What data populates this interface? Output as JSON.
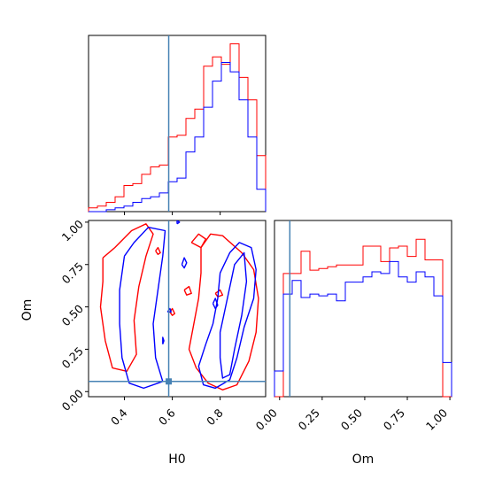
{
  "chart_data": {
    "type": "corner",
    "parameters": [
      "H0",
      "Om"
    ],
    "truth": {
      "H0": 0.585,
      "Om": 0.06
    },
    "truth_color": "#4682b4",
    "series": [
      {
        "color": "#ff0000"
      },
      {
        "color": "#0000ff"
      }
    ],
    "xlim_H0": [
      0.25,
      0.99
    ],
    "ylim_Om": [
      -0.03,
      1.01
    ],
    "xlim_Om": [
      -0.03,
      1.01
    ],
    "H0_ticks": [
      "0.4",
      "0.6",
      "0.8"
    ],
    "Om_ticks": [
      "0.00",
      "0.25",
      "0.50",
      "0.75",
      "1.00"
    ],
    "hist_H0": {
      "edges": [
        0.25,
        0.287,
        0.324,
        0.361,
        0.398,
        0.435,
        0.472,
        0.509,
        0.546,
        0.583,
        0.62,
        0.657,
        0.694,
        0.731,
        0.768,
        0.805,
        0.842,
        0.879,
        0.916,
        0.953,
        0.99
      ],
      "red": [
        2,
        3,
        5,
        8,
        14,
        15,
        20,
        24,
        25,
        40,
        41,
        50,
        55,
        78,
        83,
        79,
        90,
        72,
        60,
        30
      ],
      "blue": [
        0,
        0,
        1,
        2,
        3,
        5,
        7,
        8,
        10,
        16,
        18,
        32,
        40,
        56,
        70,
        80,
        75,
        60,
        40,
        12
      ]
    },
    "hist_Om": {
      "edges": [
        -0.03,
        0.022,
        0.074,
        0.126,
        0.178,
        0.23,
        0.282,
        0.334,
        0.386,
        0.438,
        0.49,
        0.542,
        0.594,
        0.646,
        0.698,
        0.75,
        0.802,
        0.854,
        0.906,
        0.958,
        1.01
      ],
      "red": [
        0,
        72,
        72,
        85,
        74,
        75,
        76,
        77,
        77,
        77,
        88,
        88,
        79,
        87,
        88,
        82,
        92,
        80,
        80,
        0
      ],
      "blue": [
        15,
        60,
        68,
        58,
        60,
        59,
        60,
        56,
        67,
        67,
        70,
        73,
        72,
        79,
        70,
        67,
        73,
        70,
        59,
        20
      ]
    },
    "contours": {
      "red": [
        [
          [
            0.31,
            0.79
          ],
          [
            0.36,
            0.85
          ],
          [
            0.43,
            0.95
          ],
          [
            0.49,
            0.99
          ],
          [
            0.52,
            0.93
          ],
          [
            0.49,
            0.8
          ],
          [
            0.46,
            0.62
          ],
          [
            0.44,
            0.42
          ],
          [
            0.45,
            0.22
          ],
          [
            0.41,
            0.12
          ],
          [
            0.35,
            0.14
          ],
          [
            0.32,
            0.3
          ],
          [
            0.3,
            0.5
          ],
          [
            0.31,
            0.65
          ],
          [
            0.31,
            0.79
          ]
        ],
        [
          [
            0.72,
            0.85
          ],
          [
            0.76,
            0.93
          ],
          [
            0.81,
            0.92
          ],
          [
            0.89,
            0.82
          ],
          [
            0.94,
            0.72
          ],
          [
            0.96,
            0.55
          ],
          [
            0.95,
            0.35
          ],
          [
            0.92,
            0.18
          ],
          [
            0.87,
            0.04
          ],
          [
            0.81,
            0.01
          ],
          [
            0.75,
            0.05
          ],
          [
            0.7,
            0.14
          ],
          [
            0.67,
            0.25
          ],
          [
            0.69,
            0.4
          ],
          [
            0.71,
            0.55
          ],
          [
            0.72,
            0.7
          ],
          [
            0.72,
            0.85
          ]
        ],
        [
          [
            0.68,
            0.88
          ],
          [
            0.71,
            0.93
          ],
          [
            0.74,
            0.9
          ],
          [
            0.72,
            0.85
          ],
          [
            0.68,
            0.88
          ]
        ],
        [
          [
            0.78,
            0.58
          ],
          [
            0.8,
            0.6
          ],
          [
            0.81,
            0.57
          ],
          [
            0.79,
            0.56
          ],
          [
            0.78,
            0.58
          ]
        ],
        [
          [
            0.65,
            0.6
          ],
          [
            0.67,
            0.62
          ],
          [
            0.68,
            0.58
          ],
          [
            0.66,
            0.57
          ],
          [
            0.65,
            0.6
          ]
        ],
        [
          [
            0.53,
            0.83
          ],
          [
            0.54,
            0.85
          ],
          [
            0.55,
            0.82
          ],
          [
            0.54,
            0.81
          ],
          [
            0.53,
            0.83
          ]
        ],
        [
          [
            0.59,
            0.47
          ],
          [
            0.6,
            0.49
          ],
          [
            0.61,
            0.46
          ],
          [
            0.6,
            0.45
          ],
          [
            0.59,
            0.47
          ]
        ]
      ],
      "blue": [
        [
          [
            0.4,
            0.8
          ],
          [
            0.44,
            0.88
          ],
          [
            0.5,
            0.97
          ],
          [
            0.57,
            0.95
          ],
          [
            0.56,
            0.8
          ],
          [
            0.54,
            0.6
          ],
          [
            0.52,
            0.4
          ],
          [
            0.53,
            0.2
          ],
          [
            0.56,
            0.06
          ],
          [
            0.48,
            0.02
          ],
          [
            0.42,
            0.05
          ],
          [
            0.39,
            0.2
          ],
          [
            0.38,
            0.4
          ],
          [
            0.38,
            0.6
          ],
          [
            0.4,
            0.8
          ]
        ],
        [
          [
            0.77,
            0.4
          ],
          [
            0.79,
            0.55
          ],
          [
            0.8,
            0.7
          ],
          [
            0.84,
            0.82
          ],
          [
            0.88,
            0.88
          ],
          [
            0.93,
            0.85
          ],
          [
            0.95,
            0.72
          ],
          [
            0.94,
            0.55
          ],
          [
            0.9,
            0.38
          ],
          [
            0.87,
            0.2
          ],
          [
            0.84,
            0.07
          ],
          [
            0.78,
            0.02
          ],
          [
            0.73,
            0.04
          ],
          [
            0.71,
            0.15
          ],
          [
            0.74,
            0.28
          ],
          [
            0.77,
            0.4
          ]
        ],
        [
          [
            0.8,
            0.35
          ],
          [
            0.83,
            0.55
          ],
          [
            0.86,
            0.75
          ],
          [
            0.9,
            0.82
          ],
          [
            0.91,
            0.65
          ],
          [
            0.89,
            0.45
          ],
          [
            0.86,
            0.25
          ],
          [
            0.84,
            0.1
          ],
          [
            0.81,
            0.08
          ],
          [
            0.8,
            0.2
          ],
          [
            0.8,
            0.35
          ]
        ],
        [
          [
            0.64,
            0.75
          ],
          [
            0.65,
            0.79
          ],
          [
            0.66,
            0.76
          ],
          [
            0.65,
            0.73
          ],
          [
            0.64,
            0.75
          ]
        ],
        [
          [
            0.77,
            0.52
          ],
          [
            0.78,
            0.55
          ],
          [
            0.79,
            0.51
          ],
          [
            0.78,
            0.49
          ],
          [
            0.77,
            0.52
          ]
        ],
        [
          [
            0.56,
            0.28
          ],
          [
            0.56,
            0.32
          ],
          [
            0.565,
            0.3
          ],
          [
            0.56,
            0.28
          ]
        ],
        [
          [
            0.58,
            0.47
          ],
          [
            0.59,
            0.49
          ],
          [
            0.595,
            0.47
          ],
          [
            0.58,
            0.47
          ]
        ],
        [
          [
            0.62,
            0.99
          ],
          [
            0.62,
            1.01
          ],
          [
            0.63,
            1.0
          ],
          [
            0.62,
            0.99
          ]
        ]
      ]
    }
  }
}
